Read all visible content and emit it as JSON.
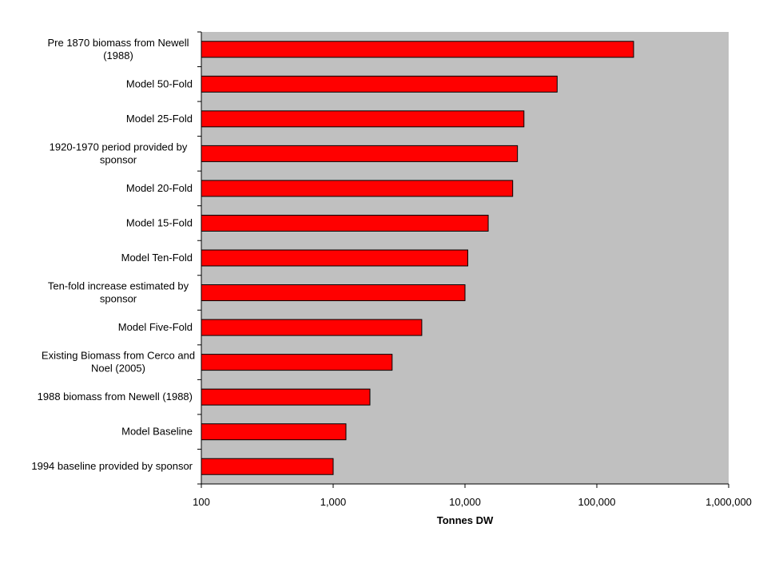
{
  "chart_data": {
    "type": "bar",
    "orientation": "horizontal",
    "x_scale": "log",
    "xlim": [
      100,
      1000000
    ],
    "xlabel": "Tonnes DW",
    "ylabel": "",
    "title": "",
    "grid": false,
    "plot_background": "#c0c0c0",
    "bar_color": "#ff0000",
    "x_ticks": [
      100,
      1000,
      10000,
      100000,
      1000000
    ],
    "x_tick_labels": [
      "100",
      "1,000",
      "10,000",
      "100,000",
      "1,000,000"
    ],
    "categories": [
      [
        "Pre 1870 biomass from Newell",
        "(1988)"
      ],
      [
        "Model 50-Fold"
      ],
      [
        "Model 25-Fold"
      ],
      [
        "1920-1970 period provided by",
        "sponsor"
      ],
      [
        "Model 20-Fold"
      ],
      [
        "Model 15-Fold"
      ],
      [
        "Model Ten-Fold"
      ],
      [
        "Ten-fold increase estimated by",
        "sponsor"
      ],
      [
        "Model Five-Fold"
      ],
      [
        "Existing Biomass from Cerco and",
        "Noel (2005)"
      ],
      [
        "1988 biomass from Newell (1988)"
      ],
      [
        "Model Baseline"
      ],
      [
        "1994 baseline provided by sponsor"
      ]
    ],
    "values": [
      190000,
      50000,
      28000,
      25000,
      23000,
      15000,
      10500,
      10000,
      4700,
      2800,
      1900,
      1250,
      1000
    ]
  }
}
